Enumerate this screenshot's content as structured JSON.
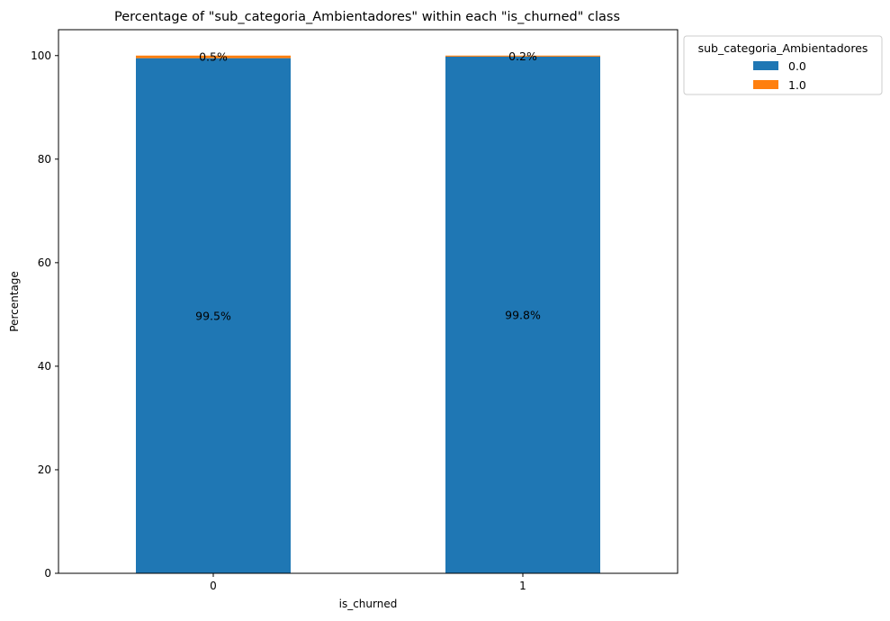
{
  "chart_data": {
    "type": "bar",
    "stacked": true,
    "title": "Percentage of \"sub_categoria_Ambientadores\" within each \"is_churned\" class",
    "xlabel": "is_churned",
    "ylabel": "Percentage",
    "categories": [
      "0",
      "1"
    ],
    "ylim": [
      0,
      105
    ],
    "yticks": [
      0,
      20,
      40,
      60,
      80,
      100
    ],
    "grid": false,
    "legend": {
      "title": "sub_categoria_Ambientadores",
      "placement": "outside-top-right"
    },
    "series": [
      {
        "name": "0.0",
        "values": [
          99.5,
          99.8
        ],
        "labels": [
          "99.5%",
          "99.8%"
        ],
        "color": "#1f77b4"
      },
      {
        "name": "1.0",
        "values": [
          0.5,
          0.2
        ],
        "labels": [
          "0.5%",
          "0.2%"
        ],
        "color": "#ff7f0e"
      }
    ]
  }
}
